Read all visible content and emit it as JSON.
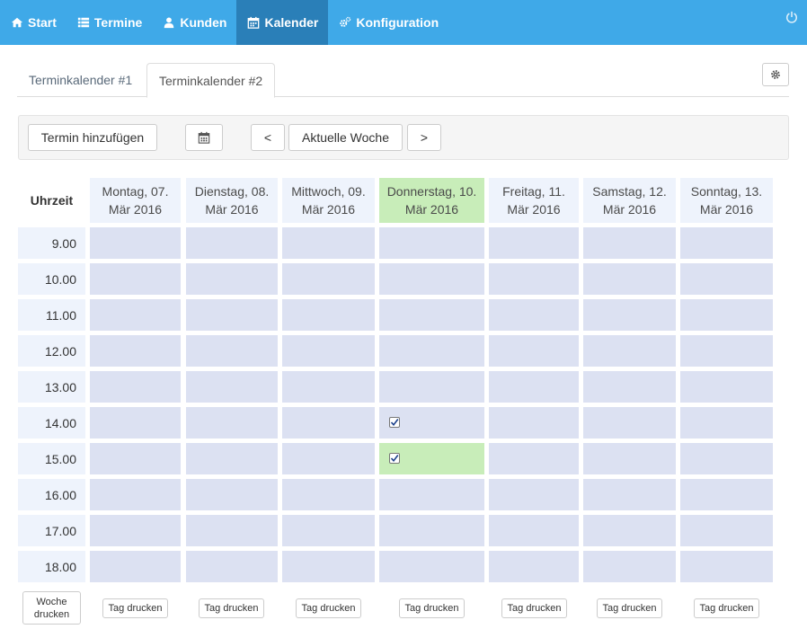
{
  "nav": {
    "items": [
      {
        "label": "Start",
        "icon": "home-icon"
      },
      {
        "label": "Termine",
        "icon": "list-icon"
      },
      {
        "label": "Kunden",
        "icon": "user-icon"
      },
      {
        "label": "Kalender",
        "icon": "calendar-icon",
        "active": true
      },
      {
        "label": "Konfiguration",
        "icon": "gears-icon"
      }
    ]
  },
  "tabs": [
    {
      "label": "Terminkalender #1",
      "active": false
    },
    {
      "label": "Terminkalender #2",
      "active": true
    }
  ],
  "toolbar": {
    "add_label": "Termin hinzufügen",
    "prev_label": "<",
    "current_week_label": "Aktuelle Woche",
    "next_label": ">"
  },
  "calendar": {
    "time_header": "Uhrzeit",
    "days": [
      {
        "line1": "Montag, 07.",
        "line2": "Mär 2016",
        "today": false
      },
      {
        "line1": "Dienstag, 08.",
        "line2": "Mär 2016",
        "today": false
      },
      {
        "line1": "Mittwoch, 09.",
        "line2": "Mär 2016",
        "today": false
      },
      {
        "line1": "Donnerstag, 10.",
        "line2": "Mär 2016",
        "today": true
      },
      {
        "line1": "Freitag, 11.",
        "line2": "Mär 2016",
        "today": false
      },
      {
        "line1": "Samstag, 12.",
        "line2": "Mär 2016",
        "today": false
      },
      {
        "line1": "Sonntag, 13.",
        "line2": "Mär 2016",
        "today": false
      }
    ],
    "times": [
      "9.00",
      "10.00",
      "11.00",
      "12.00",
      "13.00",
      "14.00",
      "15.00",
      "16.00",
      "17.00",
      "18.00"
    ],
    "checked_slots": [
      {
        "day": 3,
        "time": 5,
        "highlight": false
      },
      {
        "day": 3,
        "time": 6,
        "highlight": true
      }
    ],
    "week_print_label": "Woche drucken",
    "day_print_label": "Tag drucken"
  },
  "colors": {
    "navbar": "#3fa9e8",
    "navbar_active": "#2a7fb8",
    "slot": "#dce1f2",
    "header": "#eef3fc",
    "today": "#c8edb9"
  }
}
